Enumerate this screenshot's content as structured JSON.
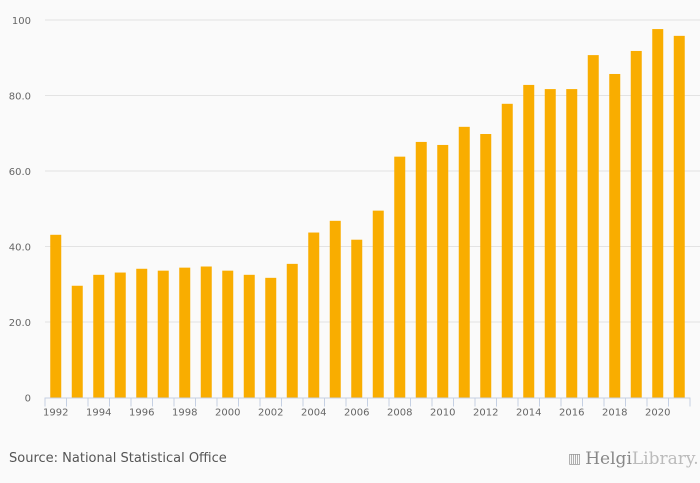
{
  "chart_data": {
    "type": "bar",
    "title": "",
    "xlabel": "",
    "ylabel": "",
    "categories": [
      "1992",
      "1993",
      "1994",
      "1995",
      "1996",
      "1997",
      "1998",
      "1999",
      "2000",
      "2001",
      "2002",
      "2003",
      "2004",
      "2005",
      "2006",
      "2007",
      "2008",
      "2009",
      "2010",
      "2011",
      "2012",
      "2013",
      "2014",
      "2015",
      "2016",
      "2017",
      "2018",
      "2019",
      "2020",
      "2021"
    ],
    "values": [
      43.1,
      29.6,
      32.5,
      33.1,
      34.1,
      33.6,
      34.4,
      34.7,
      33.6,
      32.5,
      31.7,
      35.4,
      43.7,
      46.8,
      41.8,
      49.5,
      63.8,
      67.7,
      66.9,
      71.7,
      69.8,
      77.8,
      82.8,
      81.7,
      81.7,
      90.7,
      85.7,
      91.8,
      97.6,
      95.8
    ],
    "ylim": [
      0,
      100
    ],
    "yticks": [
      "0",
      "20.0",
      "40.0",
      "60.0",
      "80.0",
      "100"
    ],
    "xtick_labels": [
      "1992",
      "1994",
      "1996",
      "1998",
      "2000",
      "2002",
      "2004",
      "2006",
      "2008",
      "2010",
      "2012",
      "2014",
      "2016",
      "2018",
      "2020"
    ],
    "grid": true,
    "bar_color": "#f9ad00"
  },
  "footer": {
    "source": "Source: National Statistical Office",
    "logo_bold": "Helgi",
    "logo_light": "Library."
  }
}
